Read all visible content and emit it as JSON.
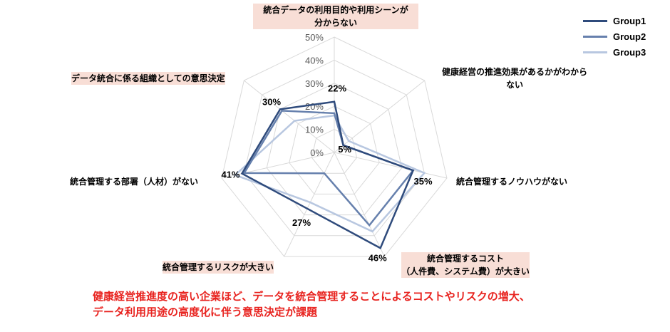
{
  "chart_data": {
    "type": "radar",
    "axes": [
      "統合データの利用目的や利用シーンが分からない",
      "健康経営の推進効果があるかがわからない",
      "統合管理するノウハウがない",
      "統合管理するコスト（人件費、システム費）が大きい",
      "統合管理するリスクが大きい",
      "統合管理する部署（人材）がない",
      "データ統合に係る組織としての意思決定"
    ],
    "rlim": [
      0,
      50
    ],
    "ticks": [
      "0%",
      "10%",
      "20%",
      "30%",
      "40%",
      "50%"
    ],
    "series": [
      {
        "name": "Group1",
        "color": "#2f4b7c",
        "values": [
          22,
          5,
          35,
          46,
          27,
          41,
          30
        ]
      },
      {
        "name": "Group2",
        "color": "#6680ad",
        "values": [
          17,
          5,
          35,
          35,
          10,
          40,
          29
        ]
      },
      {
        "name": "Group3",
        "color": "#b8c7e0",
        "values": [
          16,
          8,
          40,
          38,
          24,
          44,
          22
        ]
      }
    ],
    "data_labels": [
      "22%",
      "5%",
      "35%",
      "46%",
      "27%",
      "41%",
      "30%"
    ],
    "grid": true,
    "legend_position": "top-right"
  },
  "labels": {
    "axis0_line1": "統合データの利用目的や利用シーンが",
    "axis0_line2": "分からない",
    "axis1_line1": "健康経営の推進効果があるかがわから",
    "axis1_line2": "ない",
    "axis2": "統合管理するノウハウがない",
    "axis3_line1": "統合管理するコスト",
    "axis3_line2": "（人件費、システム費）が大きい",
    "axis4": "統合管理するリスクが大きい",
    "axis5": "統合管理する部署（人材）がない",
    "axis6": "データ統合に係る組織としての意思決定"
  },
  "footer": {
    "line1": "健康経営推進度の高い企業ほど、データを統合管理することによるコストやリスクの増大、",
    "line2": "データ利用用途の高度化に伴う意思決定が課題"
  }
}
